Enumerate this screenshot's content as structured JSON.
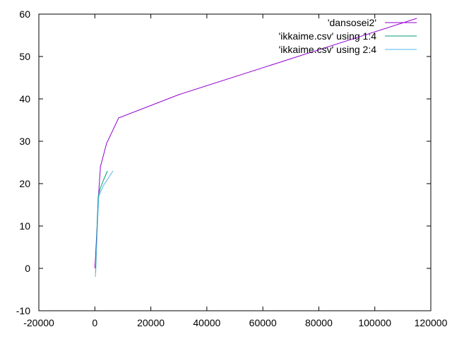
{
  "chart_data": {
    "type": "line",
    "title": "",
    "xlabel": "",
    "ylabel": "",
    "xlim": [
      -20000,
      120000
    ],
    "ylim": [
      -10,
      60
    ],
    "x_ticks": [
      -20000,
      0,
      20000,
      40000,
      60000,
      80000,
      100000,
      120000
    ],
    "y_ticks": [
      -10,
      0,
      10,
      20,
      30,
      40,
      50,
      60
    ],
    "x_tick_labels": [
      "-20000",
      "0",
      "20000",
      "40000",
      "60000",
      "80000",
      "100000",
      "120000"
    ],
    "y_tick_labels": [
      "-10",
      "0",
      "10",
      "20",
      "30",
      "40",
      "50",
      "60"
    ],
    "grid": false,
    "legend_position": "top-right",
    "series": [
      {
        "name": "'dansosei2'",
        "color": "#9400d3",
        "x": [
          0,
          200,
          500,
          800,
          1100,
          1400,
          2000,
          4200,
          8500,
          30000,
          115000
        ],
        "y": [
          0,
          2,
          6,
          10,
          14,
          18,
          24,
          29.5,
          35.5,
          41,
          59
        ]
      },
      {
        "name": "'ikkaime.csv' using 1:4",
        "color": "#009e73",
        "x": [
          300,
          500,
          700,
          900,
          1200,
          2000,
          3200,
          4500
        ],
        "y": [
          -1,
          3,
          8,
          12,
          17,
          19,
          21,
          23
        ]
      },
      {
        "name": "'ikkaime.csv' using 2:4",
        "color": "#56b4e9",
        "x": [
          200,
          400,
          700,
          1000,
          1400,
          3000,
          5000,
          6500
        ],
        "y": [
          -2,
          2,
          6,
          11,
          17,
          19.5,
          21.5,
          23
        ]
      }
    ]
  }
}
